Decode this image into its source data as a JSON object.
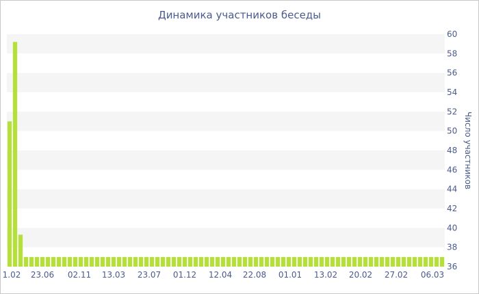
{
  "chart_data": {
    "type": "bar",
    "title": "Динамика участников беседы",
    "ylabel": "Число участников",
    "ylim": [
      36,
      60
    ],
    "yticks": [
      36,
      38,
      40,
      42,
      44,
      46,
      48,
      50,
      52,
      54,
      56,
      58,
      60
    ],
    "xtick_labels": [
      "1.02",
      "23.06",
      "02.11",
      "13.03",
      "23.07",
      "01.12",
      "12.04",
      "22.08",
      "01.01",
      "13.02",
      "20.02",
      "27.02",
      "06.03"
    ],
    "values": [
      51,
      59.2,
      39.3,
      37,
      37,
      37,
      37,
      37,
      37,
      37,
      37,
      37,
      37,
      37,
      37,
      37,
      37,
      37,
      37,
      37,
      37,
      37,
      37,
      37,
      37,
      37,
      37,
      37,
      37,
      37,
      37,
      37,
      37,
      37,
      37,
      37,
      37,
      37,
      37,
      37,
      37,
      37,
      37,
      37,
      37,
      37,
      37,
      37,
      37,
      37,
      37,
      37,
      37,
      37,
      37,
      37,
      37,
      37,
      37,
      37,
      37,
      37,
      37,
      37,
      37,
      37,
      37,
      37,
      37,
      37,
      37,
      37,
      37,
      37,
      37,
      37,
      37,
      37,
      37,
      37
    ],
    "bar_color": "#b5e03a",
    "band_color": "#f5f5f5",
    "text_color": "#4a5a8c",
    "grid": "alternating-bands",
    "yaxis_position": "right"
  }
}
